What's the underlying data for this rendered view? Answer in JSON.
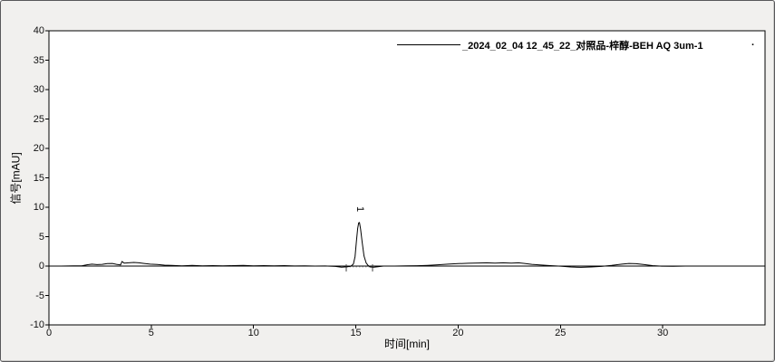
{
  "chart_data": {
    "type": "line",
    "title": "",
    "xlabel": "时间[min]",
    "ylabel": "信号[mAU]",
    "xlim": [
      0,
      35
    ],
    "ylim": [
      -10,
      40
    ],
    "x_ticks": [
      0,
      5,
      10,
      15,
      20,
      25,
      30
    ],
    "y_ticks": [
      -10,
      -5,
      0,
      5,
      10,
      15,
      20,
      25,
      30,
      35,
      40
    ],
    "grid": "zero-line-only",
    "legend_position": "top-right-inside",
    "line_color": "#000000",
    "series": [
      {
        "name": "_2024_02_04 12_45_22_对照品-梓醇-BEH AQ 3um-1",
        "color": "#000000",
        "points": [
          [
            0,
            0
          ],
          [
            0.6,
            0
          ],
          [
            1.2,
            0.03
          ],
          [
            1.6,
            0.05
          ],
          [
            1.85,
            0.22
          ],
          [
            2.1,
            0.32
          ],
          [
            2.35,
            0.25
          ],
          [
            2.6,
            0.3
          ],
          [
            2.85,
            0.42
          ],
          [
            3.1,
            0.45
          ],
          [
            3.3,
            0.3
          ],
          [
            3.5,
            0.18
          ],
          [
            3.57,
            0.78
          ],
          [
            3.68,
            0.5
          ],
          [
            3.9,
            0.55
          ],
          [
            4.15,
            0.62
          ],
          [
            4.4,
            0.55
          ],
          [
            4.65,
            0.45
          ],
          [
            4.95,
            0.32
          ],
          [
            5.3,
            0.28
          ],
          [
            5.65,
            0.15
          ],
          [
            6.0,
            0.12
          ],
          [
            6.5,
            0.05
          ],
          [
            7.0,
            0.1
          ],
          [
            7.5,
            0.03
          ],
          [
            8.0,
            0.08
          ],
          [
            8.5,
            0.03
          ],
          [
            9.0,
            0.07
          ],
          [
            9.5,
            0.1
          ],
          [
            10.0,
            0.05
          ],
          [
            10.5,
            0.08
          ],
          [
            11.0,
            0.03
          ],
          [
            11.5,
            0.07
          ],
          [
            12.0,
            0.02
          ],
          [
            12.5,
            0.05
          ],
          [
            13.0,
            0.0
          ],
          [
            13.5,
            0.02
          ],
          [
            14.0,
            -0.06
          ],
          [
            14.3,
            -0.2
          ],
          [
            14.55,
            -0.14
          ],
          [
            14.75,
            -0.05
          ],
          [
            14.88,
            0.35
          ],
          [
            14.96,
            1.6
          ],
          [
            15.03,
            4.2
          ],
          [
            15.09,
            6.4
          ],
          [
            15.14,
            7.35
          ],
          [
            15.18,
            7.4
          ],
          [
            15.23,
            6.3
          ],
          [
            15.31,
            4.0
          ],
          [
            15.4,
            1.7
          ],
          [
            15.5,
            0.55
          ],
          [
            15.6,
            0.1
          ],
          [
            15.7,
            -0.15
          ],
          [
            15.88,
            -0.2
          ],
          [
            16.08,
            -0.1
          ],
          [
            16.35,
            0.0
          ],
          [
            16.9,
            0.0
          ],
          [
            17.5,
            0.03
          ],
          [
            18.0,
            0.06
          ],
          [
            18.5,
            0.12
          ],
          [
            19.0,
            0.22
          ],
          [
            19.5,
            0.32
          ],
          [
            20.0,
            0.42
          ],
          [
            20.5,
            0.48
          ],
          [
            21.0,
            0.52
          ],
          [
            21.4,
            0.56
          ],
          [
            21.8,
            0.5
          ],
          [
            22.2,
            0.56
          ],
          [
            22.6,
            0.5
          ],
          [
            22.95,
            0.55
          ],
          [
            23.25,
            0.45
          ],
          [
            23.6,
            0.3
          ],
          [
            24.0,
            0.18
          ],
          [
            24.5,
            0.08
          ],
          [
            25.0,
            -0.02
          ],
          [
            25.5,
            -0.15
          ],
          [
            26.0,
            -0.22
          ],
          [
            26.5,
            -0.16
          ],
          [
            27.0,
            -0.06
          ],
          [
            27.5,
            0.1
          ],
          [
            28.0,
            0.32
          ],
          [
            28.35,
            0.44
          ],
          [
            28.7,
            0.4
          ],
          [
            29.1,
            0.24
          ],
          [
            29.5,
            0.08
          ],
          [
            29.95,
            -0.02
          ],
          [
            30.5,
            -0.05
          ],
          [
            31.1,
            0.0
          ],
          [
            32.0,
            0.0
          ],
          [
            33.5,
            0.0
          ],
          [
            35.0,
            0.0
          ]
        ]
      }
    ],
    "peaks": [
      {
        "label": "1",
        "retention_time_min": 15.15,
        "apex_mAU": 7.4,
        "integration_start_min": 14.53,
        "integration_end_min": 15.82
      }
    ]
  },
  "legend": {
    "trailing_dot": "."
  },
  "colors": {
    "window_background": "#f1f0ee",
    "plot_background": "#ffffff",
    "axis": "#000000",
    "integration_mark": "#444444",
    "integration_baseline": "#b5b5b5"
  }
}
